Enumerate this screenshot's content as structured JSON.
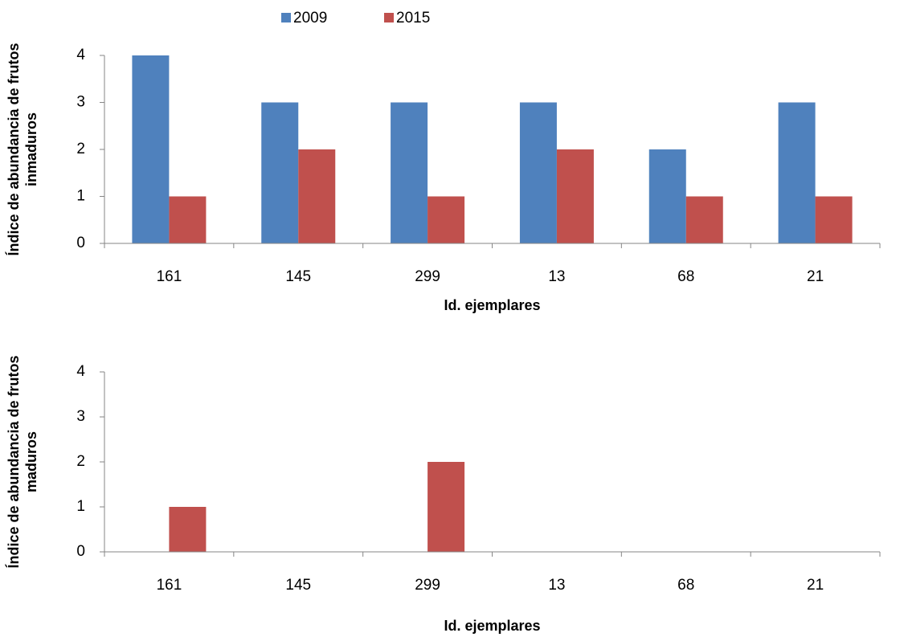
{
  "chart_data": [
    {
      "type": "bar",
      "ylabel": [
        "Índice de abundancia de frutos",
        "inmaduros"
      ],
      "xlabel": "Id. ejemplares",
      "categories": [
        "161",
        "145",
        "299",
        "13",
        "68",
        "21"
      ],
      "series": [
        {
          "name": "2009",
          "color": "#4f81bd",
          "values": [
            4,
            3,
            3,
            3,
            2,
            3
          ]
        },
        {
          "name": "2015",
          "color": "#c0504d",
          "values": [
            1,
            2,
            1,
            2,
            1,
            1
          ]
        }
      ],
      "ylim": [
        0,
        4
      ],
      "yticks": [
        0,
        1,
        2,
        3,
        4
      ],
      "grid": false,
      "legend": "top"
    },
    {
      "type": "bar",
      "ylabel": [
        "Índice de abundancia de frutos",
        "maduros"
      ],
      "xlabel": "Id. ejemplares",
      "categories": [
        "161",
        "145",
        "299",
        "13",
        "68",
        "21"
      ],
      "series": [
        {
          "color": "#4f81bd",
          "values": [
            0,
            0,
            0,
            0,
            0,
            0
          ]
        },
        {
          "color": "#c0504d",
          "values": [
            1,
            0,
            2,
            0,
            0,
            0
          ]
        }
      ],
      "ylim": [
        0,
        4
      ],
      "yticks": [
        0,
        1,
        2,
        3,
        4
      ],
      "grid": false
    }
  ]
}
